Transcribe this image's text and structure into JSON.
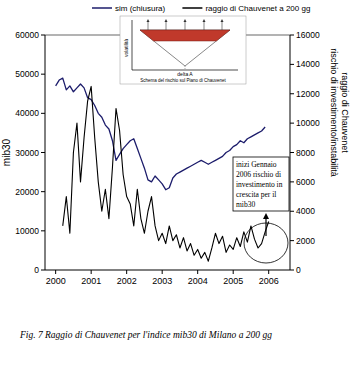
{
  "chart_data": {
    "type": "line",
    "caption": "Fig. 7 Raggio di Chauvenet per l'indice mib30 di Milano a 200 gg",
    "legend": "top",
    "y_label": "mib30",
    "y2_label": [
      "rischio di investimento/instabilità",
      "raggio di Chauvenet"
    ],
    "annotation": [
      "inizi Gennaio",
      "2006 rischio di",
      "investimento in",
      "crescita per il",
      "mib30"
    ],
    "inset": {
      "title": "Schema del rischio sul Piano di Chauvenet",
      "x_label": "delta A",
      "y_label": "volatilità"
    },
    "x": [
      2000.0,
      2000.1,
      2000.2,
      2000.3,
      2000.4,
      2000.5,
      2000.6,
      2000.7,
      2000.8,
      2000.9,
      2001.0,
      2001.1,
      2001.2,
      2001.3,
      2001.4,
      2001.5,
      2001.6,
      2001.7,
      2001.8,
      2001.9,
      2002.0,
      2002.1,
      2002.2,
      2002.3,
      2002.4,
      2002.5,
      2002.6,
      2002.7,
      2002.8,
      2002.9,
      2003.0,
      2003.1,
      2003.2,
      2003.3,
      2003.4,
      2003.5,
      2003.6,
      2003.7,
      2003.8,
      2003.9,
      2004.0,
      2004.1,
      2004.2,
      2004.3,
      2004.4,
      2004.5,
      2004.6,
      2004.7,
      2004.8,
      2004.9,
      2005.0,
      2005.1,
      2005.2,
      2005.3,
      2005.4,
      2005.5,
      2005.6,
      2005.7,
      2005.8,
      2005.9,
      2006.0
    ],
    "xlim": [
      1999.7,
      2006.6
    ],
    "xticks": [
      2000,
      2001,
      2002,
      2003,
      2004,
      2005,
      2006
    ],
    "ylim": [
      0,
      60000
    ],
    "yticks": [
      0,
      10000,
      20000,
      30000,
      40000,
      50000,
      60000
    ],
    "y2lim": [
      0,
      16000
    ],
    "y2ticks": [
      0,
      2000,
      4000,
      6000,
      8000,
      10000,
      12000,
      14000,
      16000
    ],
    "series": [
      {
        "name": "sim (chiusura)",
        "color": "#1c1c6b",
        "values": [
          47000,
          48500,
          49000,
          46000,
          47000,
          45500,
          46500,
          47500,
          46500,
          44000,
          43500,
          42000,
          40000,
          39000,
          37000,
          36000,
          33000,
          28000,
          29500,
          31000,
          32000,
          33000,
          33500,
          31000,
          28500,
          26000,
          23000,
          22500,
          24000,
          23000,
          22000,
          20500,
          21000,
          23500,
          24500,
          25000,
          25500,
          26000,
          26500,
          27000,
          27500,
          28000,
          27500,
          27000,
          27500,
          28000,
          28500,
          29000,
          30000,
          30500,
          31500,
          32000,
          33000,
          32500,
          33500,
          34000,
          34500,
          35000,
          35500,
          36500,
          null
        ]
      },
      {
        "name": "raggio di Chauvenet a 200 gg",
        "color": "#000000",
        "axis": "y2",
        "values": [
          null,
          null,
          3000,
          5000,
          2500,
          8000,
          10000,
          6000,
          9000,
          11500,
          12500,
          9000,
          6000,
          4000,
          5500,
          3500,
          7000,
          11000,
          9500,
          6500,
          5000,
          4500,
          3000,
          5500,
          3500,
          2500,
          4000,
          5000,
          3000,
          2000,
          2500,
          1800,
          3000,
          2000,
          2400,
          1500,
          2200,
          1300,
          1800,
          1000,
          1400,
          800,
          1200,
          600,
          1500,
          2500,
          1800,
          2300,
          1200,
          1700,
          1400,
          2200,
          1600,
          2600,
          1900,
          3000,
          2100,
          1500,
          1800,
          2600,
          3300
        ]
      }
    ]
  }
}
